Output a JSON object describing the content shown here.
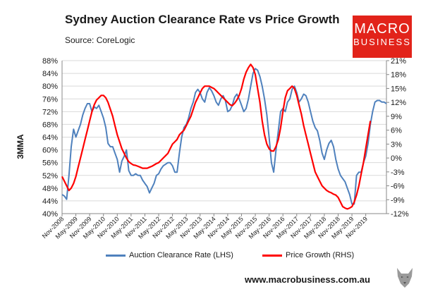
{
  "title": "Sydney Auction Clearance Rate vs Price Growth",
  "source": "Source: CoreLogic",
  "logo": {
    "line1": "MACRO",
    "line2": "BUSINESS"
  },
  "footer_url": "www.macrobusiness.com.au",
  "colors": {
    "clearance": "#4f81bd",
    "price": "#ff0000",
    "logo_bg": "#e2231a"
  },
  "chart_data": {
    "type": "line",
    "title": "Sydney Auction Clearance Rate vs Price Growth",
    "ylabel": "3MMA",
    "y_left": {
      "min": 40,
      "max": 88,
      "step": 4,
      "labels": [
        "40%",
        "44%",
        "48%",
        "52%",
        "56%",
        "60%",
        "64%",
        "68%",
        "72%",
        "76%",
        "80%",
        "84%",
        "88%"
      ]
    },
    "y_right": {
      "min": -12,
      "max": 21,
      "step": 3,
      "labels": [
        "-12%",
        "-9%",
        "-6%",
        "-3%",
        "0%",
        "3%",
        "6%",
        "9%",
        "12%",
        "15%",
        "18%",
        "21%"
      ]
    },
    "x_tick_labels": [
      "Nov-2008",
      "May-2009",
      "Nov-2009",
      "May-2010",
      "Nov-2010",
      "May-2011",
      "Nov-2011",
      "May-2012",
      "Nov-2012",
      "May-2013",
      "Nov-2013",
      "May-2014",
      "Nov-2014",
      "May-2015",
      "Nov-2015",
      "May-2016",
      "Nov-2016",
      "May-2017",
      "Nov-2017",
      "May-2018",
      "Nov-2018",
      "May-2019",
      "Nov-2019"
    ],
    "legend_position": "bottom",
    "grid": true,
    "series": [
      {
        "name": "Auction Clearance Rate (LHS)",
        "axis": "left",
        "points": [
          [
            0,
            46
          ],
          [
            1,
            45.5
          ],
          [
            2,
            44.5
          ],
          [
            3,
            52
          ],
          [
            4,
            61
          ],
          [
            5,
            66.5
          ],
          [
            6,
            64
          ],
          [
            7,
            66
          ],
          [
            8,
            68
          ],
          [
            9,
            71
          ],
          [
            10,
            73
          ],
          [
            11,
            74.5
          ],
          [
            12,
            74.5
          ],
          [
            13,
            72
          ],
          [
            14,
            73.5
          ],
          [
            15,
            73
          ],
          [
            16,
            74
          ],
          [
            17,
            72
          ],
          [
            18,
            70
          ],
          [
            19,
            67
          ],
          [
            20,
            62
          ],
          [
            21,
            61
          ],
          [
            22,
            61
          ],
          [
            23,
            59
          ],
          [
            24,
            57
          ],
          [
            25,
            53
          ],
          [
            26,
            56.5
          ],
          [
            27,
            58
          ],
          [
            28,
            60
          ],
          [
            29,
            53.5
          ],
          [
            30,
            52
          ],
          [
            31,
            52
          ],
          [
            32,
            52.5
          ],
          [
            33,
            52
          ],
          [
            34,
            52
          ],
          [
            35,
            50.5
          ],
          [
            36,
            49.5
          ],
          [
            37,
            48.5
          ],
          [
            38,
            46.5
          ],
          [
            39,
            48
          ],
          [
            40,
            49.5
          ],
          [
            41,
            52
          ],
          [
            42,
            52.5
          ],
          [
            43,
            54
          ],
          [
            44,
            55
          ],
          [
            45,
            55.5
          ],
          [
            46,
            56
          ],
          [
            47,
            56
          ],
          [
            48,
            55
          ],
          [
            49,
            53
          ],
          [
            50,
            53
          ],
          [
            51,
            59
          ],
          [
            52,
            64
          ],
          [
            53,
            67
          ],
          [
            54,
            68
          ],
          [
            55,
            70
          ],
          [
            56,
            73
          ],
          [
            57,
            75
          ],
          [
            58,
            78
          ],
          [
            59,
            79
          ],
          [
            60,
            78
          ],
          [
            61,
            76
          ],
          [
            62,
            75
          ],
          [
            63,
            78
          ],
          [
            64,
            79.5
          ],
          [
            65,
            78.5
          ],
          [
            66,
            77
          ],
          [
            67,
            75
          ],
          [
            68,
            74
          ],
          [
            69,
            76
          ],
          [
            70,
            77
          ],
          [
            71,
            75.5
          ],
          [
            72,
            72
          ],
          [
            73,
            72.5
          ],
          [
            74,
            74
          ],
          [
            75,
            76.5
          ],
          [
            76,
            77.5
          ],
          [
            77,
            76
          ],
          [
            78,
            74
          ],
          [
            79,
            72
          ],
          [
            80,
            73
          ],
          [
            81,
            76
          ],
          [
            82,
            80
          ],
          [
            83,
            84
          ],
          [
            84,
            85.5
          ],
          [
            85,
            85
          ],
          [
            86,
            83
          ],
          [
            87,
            80
          ],
          [
            88,
            76
          ],
          [
            89,
            71
          ],
          [
            90,
            64
          ],
          [
            91,
            56
          ],
          [
            92,
            53
          ],
          [
            93,
            60
          ],
          [
            94,
            66
          ],
          [
            95,
            72
          ],
          [
            96,
            73
          ],
          [
            97,
            72
          ],
          [
            98,
            75
          ],
          [
            99,
            76
          ],
          [
            100,
            79
          ],
          [
            101,
            80
          ],
          [
            102,
            78
          ],
          [
            103,
            75
          ],
          [
            104,
            76
          ],
          [
            105,
            77.5
          ],
          [
            106,
            77
          ],
          [
            107,
            75
          ],
          [
            108,
            72
          ],
          [
            109,
            69
          ],
          [
            110,
            67
          ],
          [
            111,
            66
          ],
          [
            112,
            63
          ],
          [
            113,
            59
          ],
          [
            114,
            57
          ],
          [
            115,
            60
          ],
          [
            116,
            62
          ],
          [
            117,
            63
          ],
          [
            118,
            61
          ],
          [
            119,
            57
          ],
          [
            120,
            54
          ],
          [
            121,
            52
          ],
          [
            122,
            51
          ],
          [
            123,
            50
          ],
          [
            124,
            48
          ],
          [
            125,
            46
          ],
          [
            126,
            43
          ],
          [
            127,
            43
          ],
          [
            128,
            52
          ],
          [
            129,
            53
          ],
          [
            130,
            53
          ],
          [
            131,
            56
          ],
          [
            132,
            58
          ],
          [
            133,
            62
          ],
          [
            134,
            68
          ],
          [
            135,
            72
          ],
          [
            136,
            75
          ],
          [
            137,
            75.5
          ],
          [
            138,
            75.5
          ],
          [
            139,
            75
          ],
          [
            140,
            75
          ],
          [
            141,
            74.5
          ]
        ]
      },
      {
        "name": "Price Growth (RHS)",
        "axis": "right",
        "points": [
          [
            0,
            -4
          ],
          [
            1,
            -5
          ],
          [
            2,
            -6
          ],
          [
            3,
            -7
          ],
          [
            4,
            -6.5
          ],
          [
            5,
            -5.5
          ],
          [
            6,
            -4
          ],
          [
            7,
            -2
          ],
          [
            8,
            0
          ],
          [
            9,
            2
          ],
          [
            10,
            4
          ],
          [
            11,
            6
          ],
          [
            12,
            8
          ],
          [
            13,
            10
          ],
          [
            14,
            11.5
          ],
          [
            15,
            12.5
          ],
          [
            16,
            13
          ],
          [
            17,
            13.5
          ],
          [
            18,
            13.5
          ],
          [
            19,
            13
          ],
          [
            20,
            12
          ],
          [
            21,
            10.5
          ],
          [
            22,
            9
          ],
          [
            23,
            7
          ],
          [
            24,
            5
          ],
          [
            25,
            3.5
          ],
          [
            26,
            2
          ],
          [
            27,
            1
          ],
          [
            28,
            0
          ],
          [
            29,
            -0.8
          ],
          [
            30,
            -1.2
          ],
          [
            31,
            -1.5
          ],
          [
            32,
            -1.6
          ],
          [
            33,
            -1.8
          ],
          [
            34,
            -2
          ],
          [
            35,
            -2.2
          ],
          [
            36,
            -2.2
          ],
          [
            37,
            -2.2
          ],
          [
            38,
            -2
          ],
          [
            39,
            -1.8
          ],
          [
            40,
            -1.5
          ],
          [
            41,
            -1.2
          ],
          [
            42,
            -1
          ],
          [
            43,
            -0.5
          ],
          [
            44,
            0
          ],
          [
            45,
            0.5
          ],
          [
            46,
            1
          ],
          [
            47,
            2
          ],
          [
            48,
            3
          ],
          [
            49,
            3.5
          ],
          [
            50,
            4
          ],
          [
            51,
            5
          ],
          [
            52,
            5.5
          ],
          [
            53,
            6
          ],
          [
            54,
            7
          ],
          [
            55,
            8
          ],
          [
            56,
            9
          ],
          [
            57,
            10.5
          ],
          [
            58,
            12
          ],
          [
            59,
            13
          ],
          [
            60,
            14
          ],
          [
            61,
            15
          ],
          [
            62,
            15.5
          ],
          [
            63,
            15.5
          ],
          [
            64,
            15.5
          ],
          [
            65,
            15.2
          ],
          [
            66,
            15
          ],
          [
            67,
            14.5
          ],
          [
            68,
            14
          ],
          [
            69,
            13.5
          ],
          [
            70,
            13
          ],
          [
            71,
            12.5
          ],
          [
            72,
            12
          ],
          [
            73,
            11.5
          ],
          [
            74,
            11.3
          ],
          [
            75,
            11.8
          ],
          [
            76,
            12.5
          ],
          [
            77,
            13.5
          ],
          [
            78,
            15
          ],
          [
            79,
            17
          ],
          [
            80,
            18.5
          ],
          [
            81,
            19.5
          ],
          [
            82,
            20.2
          ],
          [
            83,
            19.5
          ],
          [
            84,
            18
          ],
          [
            85,
            15
          ],
          [
            86,
            12
          ],
          [
            87,
            8
          ],
          [
            88,
            5
          ],
          [
            89,
            3
          ],
          [
            90,
            2
          ],
          [
            91,
            1.5
          ],
          [
            92,
            1.5
          ],
          [
            93,
            2.5
          ],
          [
            94,
            4
          ],
          [
            95,
            6.5
          ],
          [
            96,
            10
          ],
          [
            97,
            13
          ],
          [
            98,
            14.5
          ],
          [
            99,
            15
          ],
          [
            100,
            15.5
          ],
          [
            101,
            15
          ],
          [
            102,
            13.5
          ],
          [
            103,
            11.5
          ],
          [
            104,
            9.5
          ],
          [
            105,
            7
          ],
          [
            106,
            5
          ],
          [
            107,
            3
          ],
          [
            108,
            1
          ],
          [
            109,
            -1
          ],
          [
            110,
            -3
          ],
          [
            111,
            -4
          ],
          [
            112,
            -5
          ],
          [
            113,
            -6
          ],
          [
            114,
            -6.5
          ],
          [
            115,
            -7
          ],
          [
            116,
            -7.3
          ],
          [
            117,
            -7.5
          ],
          [
            118,
            -7.8
          ],
          [
            119,
            -8
          ],
          [
            120,
            -8.5
          ],
          [
            121,
            -9.5
          ],
          [
            122,
            -10.5
          ],
          [
            123,
            -10.8
          ],
          [
            124,
            -11
          ],
          [
            125,
            -10.8
          ],
          [
            126,
            -10.5
          ],
          [
            127,
            -9.5
          ],
          [
            128,
            -8
          ],
          [
            129,
            -6
          ],
          [
            130,
            -3.5
          ],
          [
            131,
            -1
          ],
          [
            132,
            2
          ],
          [
            133,
            5
          ],
          [
            134,
            8
          ]
        ]
      }
    ]
  }
}
